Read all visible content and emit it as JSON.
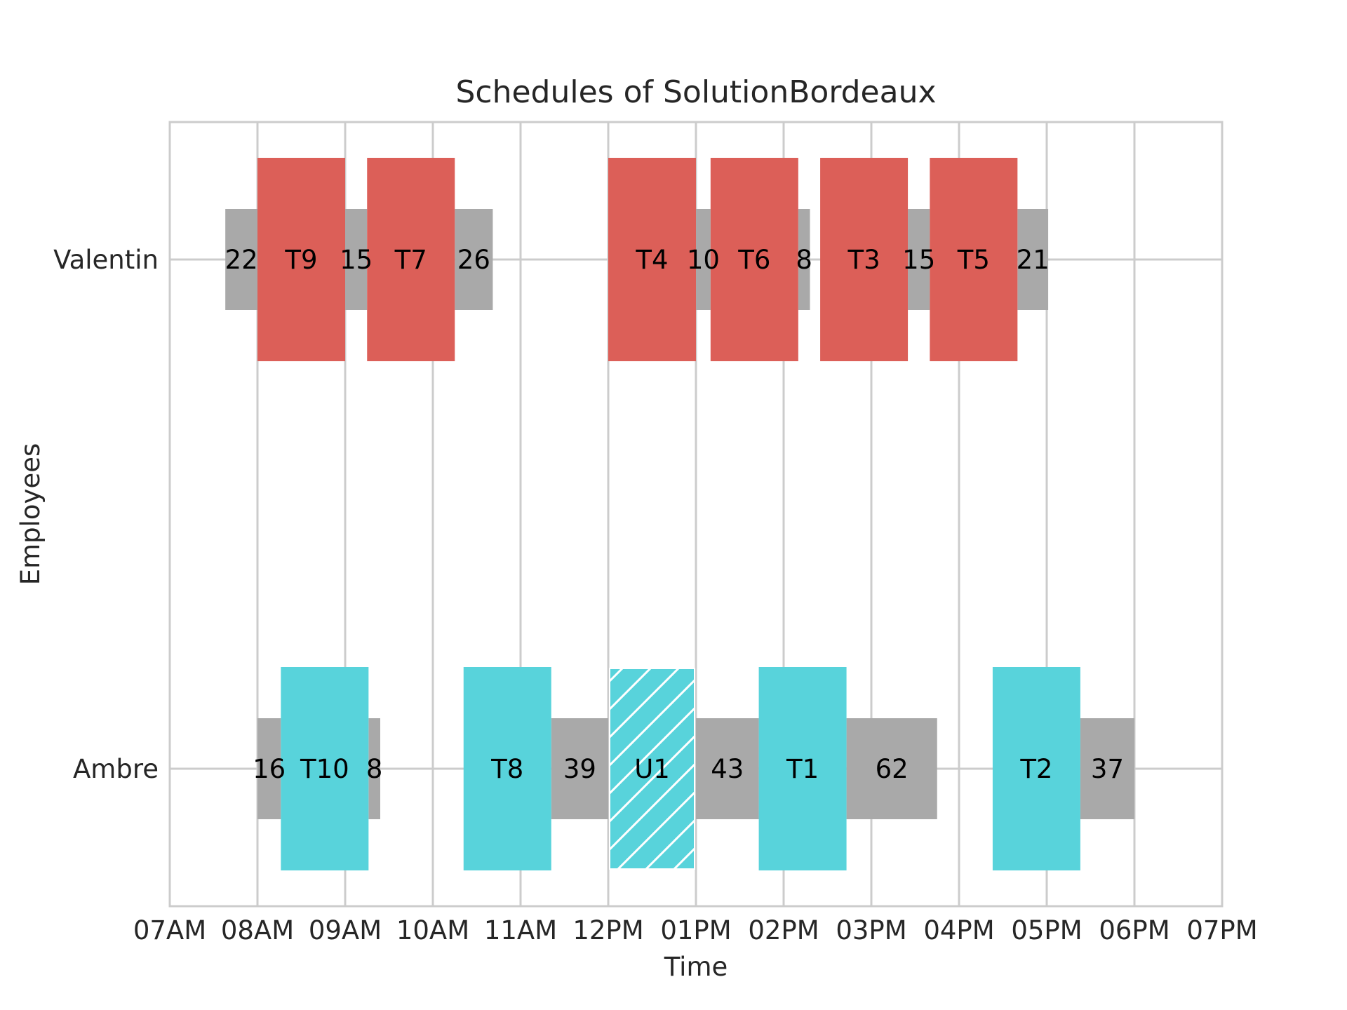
{
  "chart_data": {
    "type": "gantt",
    "title": "Schedules of SolutionBordeaux",
    "xlabel": "Time",
    "ylabel": "Employees",
    "x_ticks": [
      "07AM",
      "08AM",
      "09AM",
      "10AM",
      "11AM",
      "12PM",
      "01PM",
      "02PM",
      "03PM",
      "04PM",
      "05PM",
      "06PM",
      "07PM"
    ],
    "xlim": [
      "07:00",
      "19:00"
    ],
    "employees": [
      "Valentin",
      "Ambre"
    ],
    "grid": true,
    "colors": {
      "travel": "#a9a9a9",
      "valentin_task": "#dc5f58",
      "ambre_task": "#58d3db",
      "unavailable": "#58d3db",
      "grid": "#cccccc"
    },
    "travel": [
      {
        "employee": "Valentin",
        "start": "07:38",
        "end": "08:00",
        "label": "22"
      },
      {
        "employee": "Valentin",
        "start": "09:00",
        "end": "09:15",
        "label": "15"
      },
      {
        "employee": "Valentin",
        "start": "10:15",
        "end": "10:41",
        "label": "26"
      },
      {
        "employee": "Valentin",
        "start": "13:00",
        "end": "13:10",
        "label": "10"
      },
      {
        "employee": "Valentin",
        "start": "14:10",
        "end": "14:18",
        "label": "8"
      },
      {
        "employee": "Valentin",
        "start": "15:25",
        "end": "15:40",
        "label": "15"
      },
      {
        "employee": "Valentin",
        "start": "16:40",
        "end": "17:01",
        "label": "21"
      },
      {
        "employee": "Ambre",
        "start": "08:00",
        "end": "08:16",
        "label": "16"
      },
      {
        "employee": "Ambre",
        "start": "09:16",
        "end": "09:24",
        "label": "8"
      },
      {
        "employee": "Ambre",
        "start": "11:21",
        "end": "12:00",
        "label": "39"
      },
      {
        "employee": "Ambre",
        "start": "13:00",
        "end": "13:43",
        "label": "43"
      },
      {
        "employee": "Ambre",
        "start": "14:43",
        "end": "15:45",
        "label": "62"
      },
      {
        "employee": "Ambre",
        "start": "17:23",
        "end": "18:00",
        "label": "37"
      }
    ],
    "tasks": [
      {
        "employee": "Valentin",
        "start": "08:00",
        "end": "09:00",
        "label": "T9"
      },
      {
        "employee": "Valentin",
        "start": "09:15",
        "end": "10:15",
        "label": "T7"
      },
      {
        "employee": "Valentin",
        "start": "12:00",
        "end": "13:00",
        "label": "T4"
      },
      {
        "employee": "Valentin",
        "start": "13:10",
        "end": "14:10",
        "label": "T6"
      },
      {
        "employee": "Valentin",
        "start": "14:25",
        "end": "15:25",
        "label": "T3"
      },
      {
        "employee": "Valentin",
        "start": "15:40",
        "end": "16:40",
        "label": "T5"
      },
      {
        "employee": "Ambre",
        "start": "08:16",
        "end": "09:16",
        "label": "T10"
      },
      {
        "employee": "Ambre",
        "start": "10:21",
        "end": "11:21",
        "label": "T8"
      },
      {
        "employee": "Ambre",
        "start": "13:43",
        "end": "14:43",
        "label": "T1"
      },
      {
        "employee": "Ambre",
        "start": "16:23",
        "end": "17:23",
        "label": "T2"
      }
    ],
    "unavailability": [
      {
        "employee": "Ambre",
        "start": "12:00",
        "end": "13:00",
        "label": "U1",
        "pattern": "hatched"
      }
    ]
  }
}
